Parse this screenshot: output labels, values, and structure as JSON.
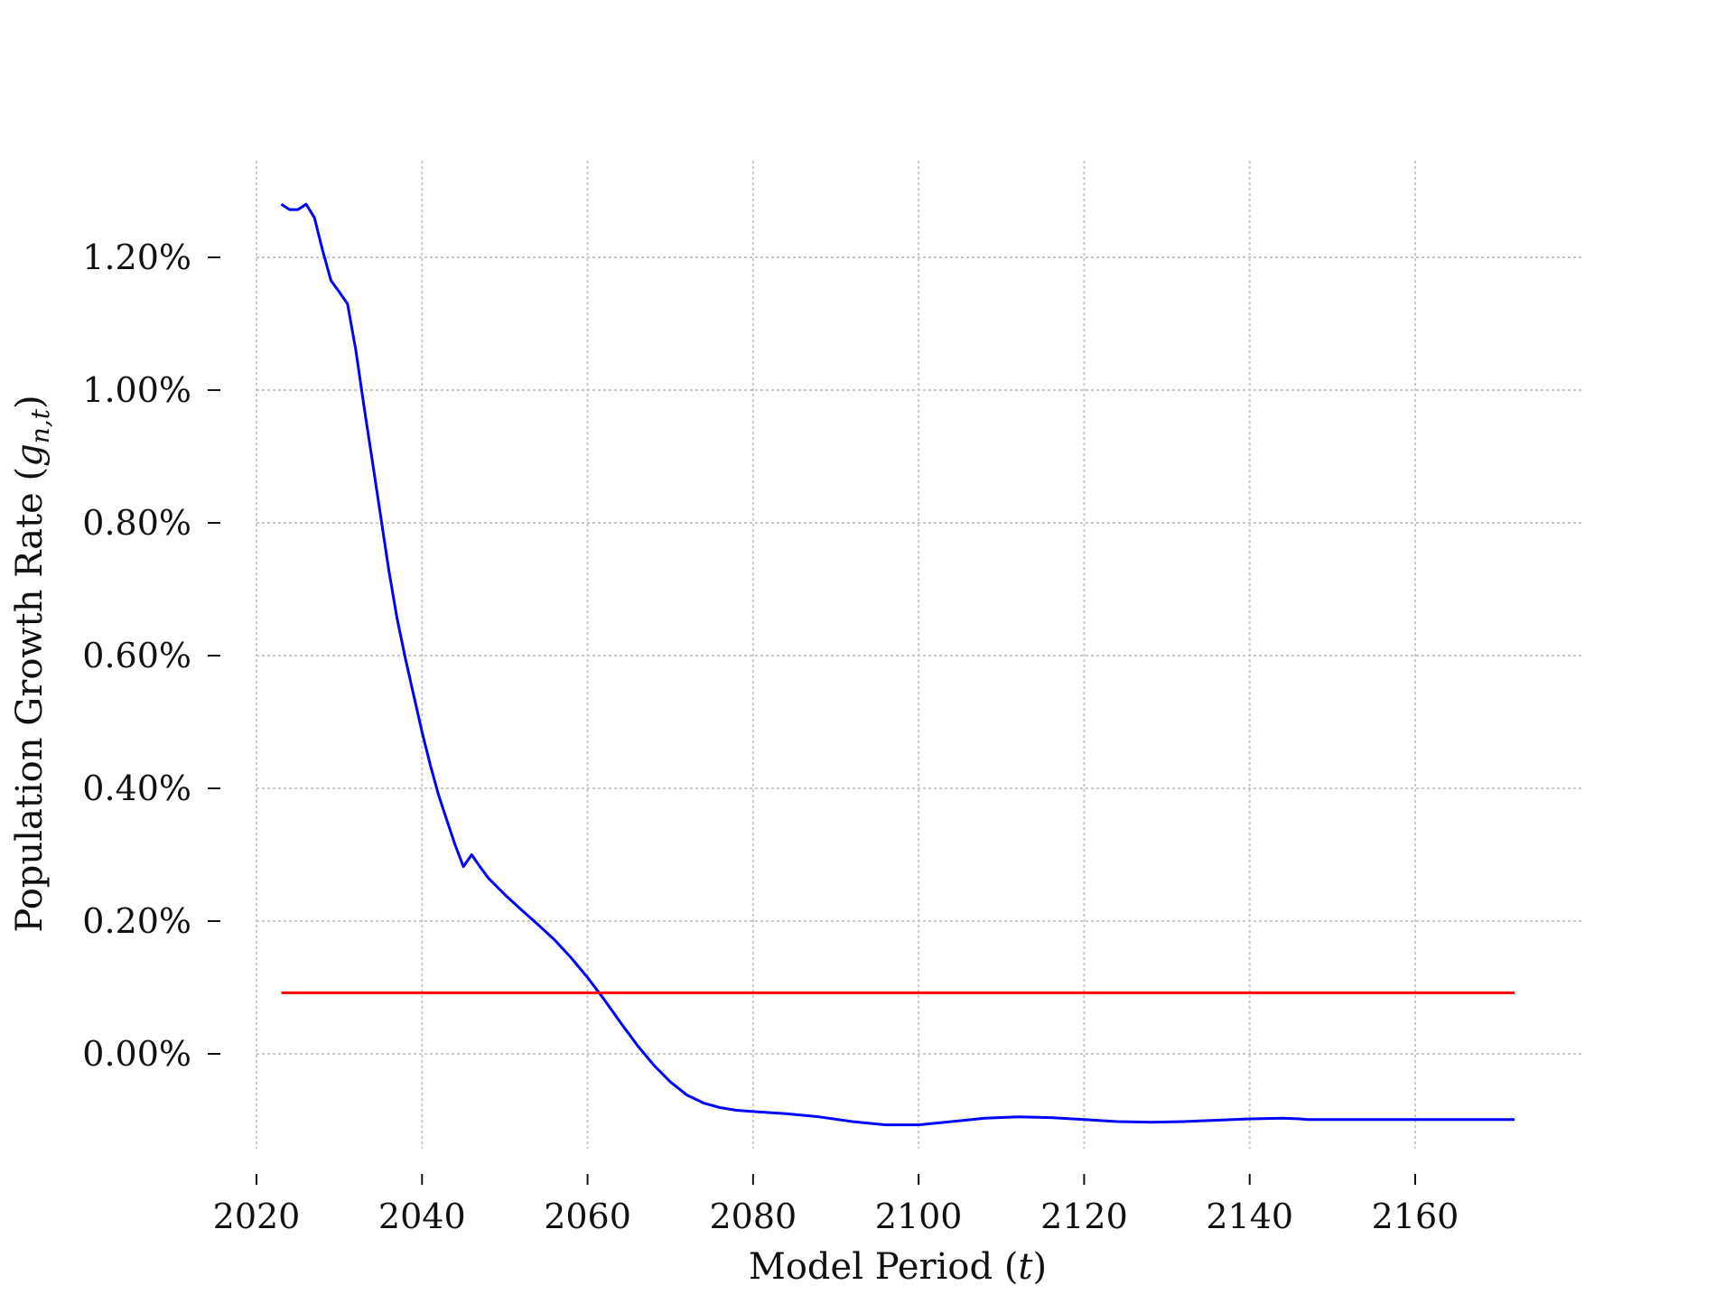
{
  "chart_data": {
    "type": "line",
    "title": "",
    "xlabel": "Model Period",
    "xlabel_symbol": "t",
    "ylabel": "Population Growth Rate",
    "ylabel_symbol": "g",
    "ylabel_subscript": "n,t",
    "xlim": [
      2010,
      2180
    ],
    "ylim": [
      -0.0018,
      0.0135
    ],
    "x_ticks": [
      2020,
      2040,
      2060,
      2080,
      2100,
      2120,
      2140,
      2160
    ],
    "x_tick_labels": [
      "2020",
      "2040",
      "2060",
      "2080",
      "2100",
      "2120",
      "2140",
      "2160"
    ],
    "y_ticks": [
      0.0,
      0.002,
      0.004,
      0.006,
      0.008,
      0.01,
      0.012
    ],
    "y_tick_labels": [
      "0.00%",
      "0.20%",
      "0.40%",
      "0.60%",
      "0.80%",
      "1.00%",
      "1.20%"
    ],
    "grid": true,
    "legend": "none",
    "series": [
      {
        "color": "#0000ff",
        "x": [
          2023,
          2024,
          2025,
          2026,
          2027,
          2028,
          2029,
          2030,
          2031,
          2032,
          2033,
          2034,
          2035,
          2036,
          2037,
          2038,
          2039,
          2040,
          2041,
          2042,
          2043,
          2044,
          2045,
          2046,
          2047,
          2048,
          2050,
          2052,
          2054,
          2056,
          2058,
          2060,
          2062,
          2064,
          2066,
          2068,
          2070,
          2072,
          2074,
          2076,
          2078,
          2080,
          2084,
          2088,
          2092,
          2096,
          2100,
          2104,
          2108,
          2112,
          2116,
          2120,
          2124,
          2128,
          2132,
          2136,
          2140,
          2144,
          2146,
          2147,
          2150,
          2155,
          2160,
          2165,
          2170,
          2172
        ],
        "y": [
          0.0128,
          0.01272,
          0.01272,
          0.0128,
          0.0126,
          0.0121,
          0.01165,
          0.01148,
          0.0113,
          0.0106,
          0.00975,
          0.00893,
          0.0081,
          0.00728,
          0.00655,
          0.00595,
          0.0054,
          0.00485,
          0.00435,
          0.0039,
          0.00352,
          0.00315,
          0.00282,
          0.003,
          0.00282,
          0.00265,
          0.0024,
          0.00217,
          0.00195,
          0.00172,
          0.00145,
          0.00115,
          0.00082,
          0.00047,
          0.00013,
          -0.00017,
          -0.00042,
          -0.00062,
          -0.00074,
          -0.00081,
          -0.00085,
          -0.00087,
          -0.0009,
          -0.00095,
          -0.00102,
          -0.00107,
          -0.00107,
          -0.00102,
          -0.00097,
          -0.00095,
          -0.00096,
          -0.00099,
          -0.00102,
          -0.00103,
          -0.00102,
          -0.001,
          -0.00098,
          -0.00097,
          -0.00098,
          -0.00099,
          -0.00099,
          -0.00099,
          -0.00099,
          -0.00099,
          -0.00099,
          -0.00099
        ]
      },
      {
        "color": "#ff0000",
        "x": [
          2023,
          2172
        ],
        "y": [
          0.00092,
          0.00092
        ]
      }
    ]
  }
}
